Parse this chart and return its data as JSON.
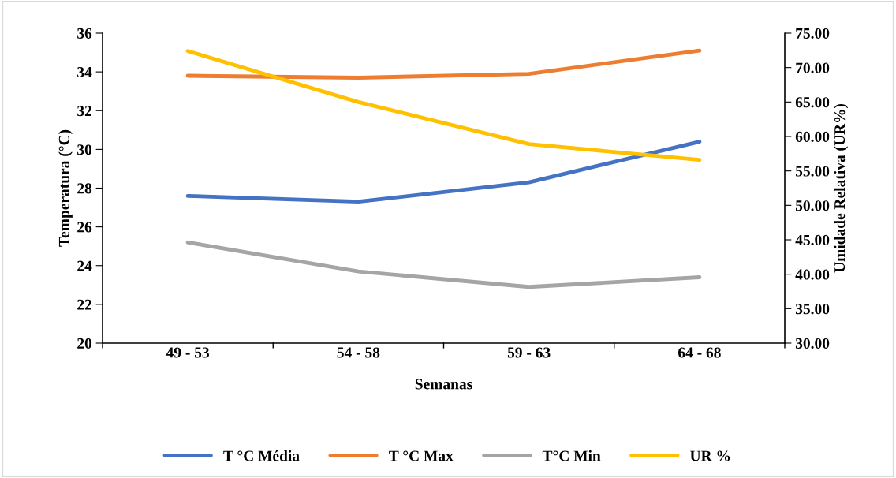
{
  "chart_data": {
    "type": "line",
    "xlabel": "Semanas",
    "ylabel": "Temperatura (°C)",
    "y2label": "Umidade Relativa (UR%)",
    "categories": [
      "49 - 53",
      "54 - 58",
      "59 - 63",
      "64 - 68"
    ],
    "series": [
      {
        "name": "T °C Média",
        "color": "#4472c4",
        "values": [
          27.6,
          27.3,
          28.3,
          30.4
        ]
      },
      {
        "name": "T °C Max",
        "color": "#ed7d31",
        "values": [
          33.8,
          33.7,
          33.9,
          35.1
        ]
      },
      {
        "name": "T°C Min",
        "color": "#a5a5a5",
        "values": [
          25.2,
          23.7,
          22.9,
          23.4
        ]
      },
      {
        "name": "UR %",
        "color": "#ffc000",
        "values": [
          72.4,
          65.0,
          58.9,
          56.6
        ],
        "axis": "y2"
      }
    ],
    "ylim": [
      20,
      36
    ],
    "yticks": [
      20,
      22,
      24,
      26,
      28,
      30,
      32,
      34,
      36
    ],
    "y2lim": [
      30,
      75
    ],
    "y2ticks": [
      {
        "value": 30,
        "label": "30.00"
      },
      {
        "value": 35,
        "label": "35.00"
      },
      {
        "value": 40,
        "label": "40.00"
      },
      {
        "value": 45,
        "label": "45.00"
      },
      {
        "value": 50,
        "label": "50.00"
      },
      {
        "value": 55,
        "label": "55.00"
      },
      {
        "value": 60,
        "label": "60.00"
      },
      {
        "value": 65,
        "label": "65.00"
      },
      {
        "value": 70,
        "label": "70.00"
      },
      {
        "value": 75,
        "label": "75.00"
      }
    ],
    "legend": "bottom",
    "grid": false,
    "marker": "none",
    "line_style": "solid"
  }
}
